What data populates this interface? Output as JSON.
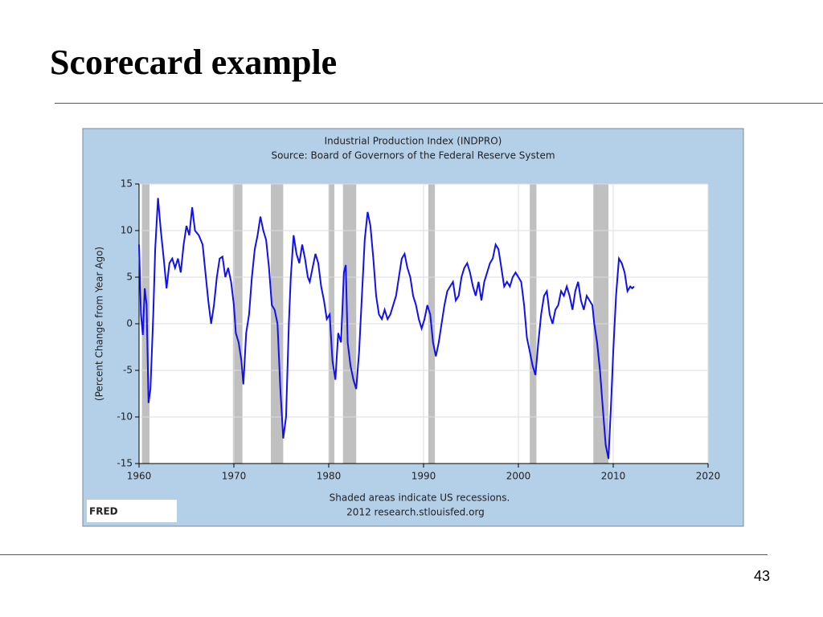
{
  "slide": {
    "title": "Scorecard example",
    "page_number": "43"
  },
  "chart_data": {
    "type": "line",
    "title": "Industrial Production Index (INDPRO)",
    "subtitle": "Source: Board of Governors of the Federal Reserve System",
    "y_label": "(Percent Change from Year Ago)",
    "note": "Shaded areas indicate US recessions.",
    "credit": "2012 research.stlouisfed.org",
    "logo": "FRED",
    "xlim": [
      1960,
      2020
    ],
    "xticks": [
      1960,
      1970,
      1980,
      1990,
      2000,
      2010,
      2020
    ],
    "ylim": [
      -15,
      15
    ],
    "yticks": [
      -15,
      -10,
      -5,
      0,
      5,
      10,
      15
    ],
    "grid": true,
    "recession_color": "#c0c0c0",
    "recessions": [
      [
        1960.3,
        1961.1
      ],
      [
        1969.9,
        1970.9
      ],
      [
        1973.9,
        1975.2
      ],
      [
        1980.0,
        1980.6
      ],
      [
        1981.5,
        1982.9
      ],
      [
        1990.5,
        1991.2
      ],
      [
        2001.2,
        2001.9
      ],
      [
        2007.9,
        2009.5
      ]
    ],
    "series": [
      {
        "name": "INDPRO",
        "color": "#1010f0",
        "x": [
          1960.0,
          1960.2,
          1960.4,
          1960.6,
          1960.8,
          1961.0,
          1961.2,
          1961.5,
          1961.7,
          1962.0,
          1962.3,
          1962.6,
          1962.9,
          1963.2,
          1963.5,
          1963.8,
          1964.1,
          1964.4,
          1964.7,
          1965.0,
          1965.3,
          1965.6,
          1965.9,
          1966.3,
          1966.7,
          1967.0,
          1967.3,
          1967.6,
          1967.9,
          1968.2,
          1968.5,
          1968.8,
          1969.1,
          1969.4,
          1969.7,
          1970.0,
          1970.2,
          1970.5,
          1970.8,
          1971.0,
          1971.3,
          1971.6,
          1971.9,
          1972.2,
          1972.5,
          1972.8,
          1973.1,
          1973.4,
          1973.7,
          1974.0,
          1974.3,
          1974.6,
          1974.9,
          1975.2,
          1975.5,
          1975.8,
          1976.0,
          1976.3,
          1976.6,
          1976.9,
          1977.2,
          1977.5,
          1977.8,
          1978.0,
          1978.3,
          1978.6,
          1978.9,
          1979.2,
          1979.5,
          1979.8,
          1980.1,
          1980.4,
          1980.7,
          1981.0,
          1981.3,
          1981.6,
          1981.8,
          1982.0,
          1982.3,
          1982.6,
          1982.9,
          1983.2,
          1983.5,
          1983.8,
          1984.1,
          1984.4,
          1984.7,
          1985.0,
          1985.3,
          1985.6,
          1985.9,
          1986.2,
          1986.5,
          1986.8,
          1987.1,
          1987.4,
          1987.7,
          1988.0,
          1988.3,
          1988.6,
          1988.9,
          1989.2,
          1989.5,
          1989.8,
          1990.1,
          1990.4,
          1990.7,
          1991.0,
          1991.3,
          1991.6,
          1991.9,
          1992.2,
          1992.5,
          1992.8,
          1993.1,
          1993.4,
          1993.7,
          1994.0,
          1994.3,
          1994.6,
          1994.9,
          1995.2,
          1995.5,
          1995.8,
          1996.1,
          1996.4,
          1996.7,
          1997.0,
          1997.3,
          1997.6,
          1997.9,
          1998.2,
          1998.5,
          1998.8,
          1999.1,
          1999.4,
          1999.7,
          2000.0,
          2000.3,
          2000.6,
          2000.9,
          2001.2,
          2001.5,
          2001.8,
          2002.1,
          2002.4,
          2002.7,
          2003.0,
          2003.3,
          2003.6,
          2003.9,
          2004.2,
          2004.5,
          2004.8,
          2005.1,
          2005.4,
          2005.7,
          2006.0,
          2006.3,
          2006.6,
          2006.9,
          2007.2,
          2007.5,
          2007.8,
          2008.0,
          2008.3,
          2008.6,
          2008.9,
          2009.2,
          2009.5,
          2009.8,
          2010.0,
          2010.3,
          2010.6,
          2010.9,
          2011.2,
          2011.5,
          2011.8,
          2012.0,
          2012.2
        ],
        "values": [
          8.5,
          1,
          -1.2,
          3.8,
          2,
          -8.5,
          -7,
          1,
          8,
          13.5,
          10,
          7,
          3.8,
          6.5,
          7,
          6,
          7,
          5.5,
          8.5,
          10.5,
          9.5,
          12.5,
          10,
          9.5,
          8.5,
          5.5,
          2.5,
          0,
          2,
          5,
          7,
          7.2,
          5,
          6,
          4.5,
          2,
          -1,
          -2,
          -4,
          -6.5,
          -1,
          1,
          5,
          8,
          9.5,
          11.5,
          10,
          9,
          6,
          2,
          1.5,
          0,
          -7,
          -12.3,
          -10,
          0,
          5,
          9.5,
          7.5,
          6.5,
          8.5,
          7,
          5,
          4.5,
          6,
          7.5,
          6.5,
          4,
          2.5,
          0.5,
          1,
          -4,
          -6,
          -1,
          -2,
          5.5,
          6.3,
          -2,
          -4.5,
          -6,
          -7,
          -3,
          3,
          9,
          12,
          10.5,
          7,
          3,
          1,
          0.5,
          1.5,
          0.5,
          1,
          2,
          3,
          5,
          7,
          7.5,
          6,
          5,
          3,
          2,
          0.5,
          -0.5,
          0.5,
          2,
          1,
          -2,
          -3.5,
          -2,
          0,
          2,
          3.5,
          4,
          4.5,
          2.5,
          3,
          5,
          6,
          6.5,
          5.5,
          4,
          3,
          4.5,
          2.5,
          4.5,
          5.5,
          6.5,
          7,
          8.5,
          8,
          6,
          4,
          4.5,
          4,
          5,
          5.5,
          5,
          4.5,
          2,
          -1.5,
          -3,
          -4.5,
          -5.5,
          -2,
          1,
          3,
          3.5,
          1,
          0,
          1.5,
          2,
          3.5,
          3,
          4,
          3,
          1.5,
          3.5,
          4.5,
          2.5,
          1.5,
          3,
          2.5,
          2,
          0,
          -2,
          -5,
          -9,
          -13,
          -14.5,
          -8,
          -3,
          3,
          7,
          6.5,
          5.5,
          3.5,
          4,
          3.8,
          4
        ]
      }
    ]
  }
}
